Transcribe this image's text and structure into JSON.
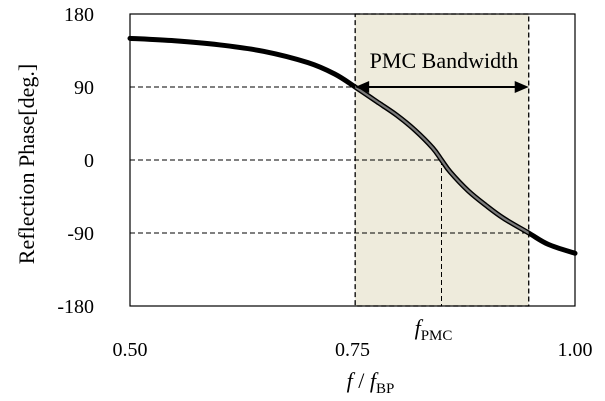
{
  "chart_data": {
    "type": "line",
    "title": "",
    "xlabel_main": "f",
    "xlabel_sep": " / ",
    "xlabel_denom_base": "f",
    "xlabel_denom_sub": "BP",
    "ylabel": "Reflection Phase[deg.]",
    "xlim": [
      0.5,
      1.0
    ],
    "ylim": [
      -180,
      180
    ],
    "x_ticks": [
      0.5,
      0.75,
      1.0
    ],
    "x_tick_labels": [
      "0.50",
      "0.75",
      "1.00"
    ],
    "y_ticks": [
      180,
      90,
      0,
      -90,
      -180
    ],
    "y_tick_labels": [
      "180",
      "90",
      "0",
      "-90",
      "-180"
    ],
    "reference_lines_y": [
      90,
      0,
      -90
    ],
    "pmc_band": {
      "x_start": 0.753,
      "x_end": 0.948
    },
    "annotation_bandwidth": "PMC Bandwidth",
    "fpmc_x": 0.85,
    "fpmc_label_base": "f",
    "fpmc_label_sub": "PMC",
    "series": [
      {
        "x": [
          0.5,
          0.55,
          0.6,
          0.65,
          0.7,
          0.73,
          0.753,
          0.78,
          0.8,
          0.82,
          0.84,
          0.85,
          0.86,
          0.88,
          0.9,
          0.92,
          0.948,
          0.97,
          1.0
        ],
        "y": [
          150,
          147,
          142,
          134,
          120,
          106,
          90,
          70,
          55,
          37,
          15,
          0,
          -15,
          -38,
          -56,
          -72,
          -90,
          -104,
          -115
        ]
      }
    ],
    "colors": {
      "band_fill": "#eeebdc",
      "curve": "#000000",
      "curve_inner": "#7a7a7a"
    }
  }
}
